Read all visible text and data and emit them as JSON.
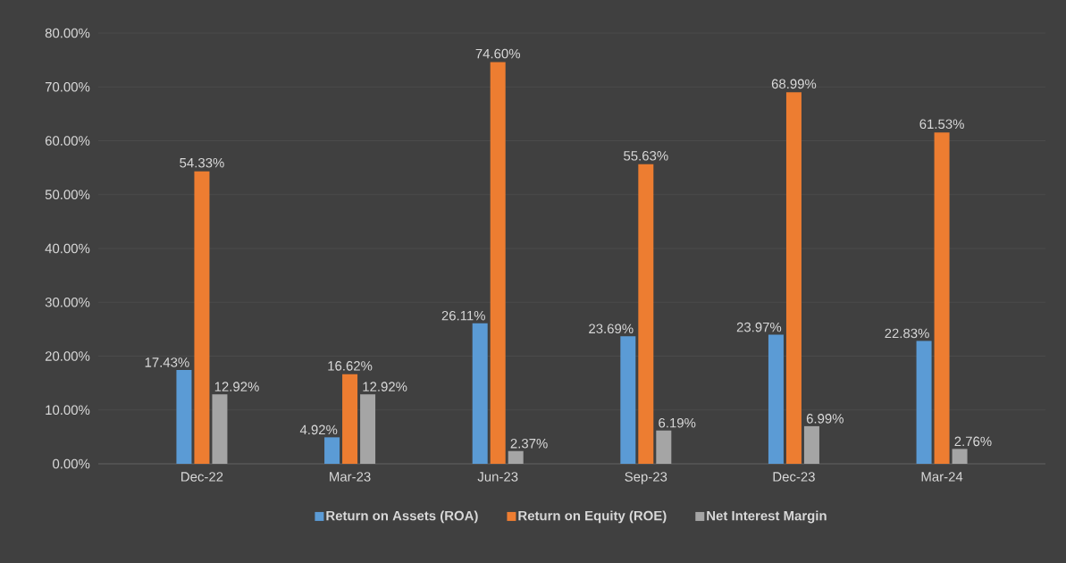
{
  "chart_data": {
    "type": "bar",
    "categories": [
      "Dec-22",
      "Mar-23",
      "Jun-23",
      "Sep-23",
      "Dec-23",
      "Mar-24"
    ],
    "series": [
      {
        "name": "Return on Assets (ROA)",
        "color": "#5b9bd5",
        "values": [
          17.43,
          4.92,
          26.11,
          23.69,
          23.97,
          22.83
        ],
        "value_labels": [
          "17.43%",
          "4.92%",
          "26.11%",
          "23.69%",
          "23.97%",
          "22.83%"
        ]
      },
      {
        "name": "Return on Equity (ROE)",
        "color": "#ed7d31",
        "values": [
          54.33,
          16.62,
          74.6,
          55.63,
          68.99,
          61.53
        ],
        "value_labels": [
          "54.33%",
          "16.62%",
          "74.60%",
          "55.63%",
          "68.99%",
          "61.53%"
        ]
      },
      {
        "name": "Net Interest Margin",
        "color": "#a5a5a5",
        "values": [
          12.92,
          12.92,
          2.37,
          6.19,
          6.99,
          2.76
        ],
        "value_labels": [
          "12.92%",
          "12.92%",
          "2.37%",
          "6.19%",
          "6.99%",
          "2.76%"
        ]
      }
    ],
    "ylim": [
      0,
      80
    ],
    "yticks": [
      {
        "value": 0,
        "label": "0.00%"
      },
      {
        "value": 10,
        "label": "10.00%"
      },
      {
        "value": 20,
        "label": "20.00%"
      },
      {
        "value": 30,
        "label": "30.00%"
      },
      {
        "value": 40,
        "label": "40.00%"
      },
      {
        "value": 50,
        "label": "50.00%"
      },
      {
        "value": 60,
        "label": "60.00%"
      },
      {
        "value": 70,
        "label": "70.00%"
      },
      {
        "value": 80,
        "label": "80.00%"
      }
    ],
    "grid": "y",
    "legend": "bottom"
  }
}
